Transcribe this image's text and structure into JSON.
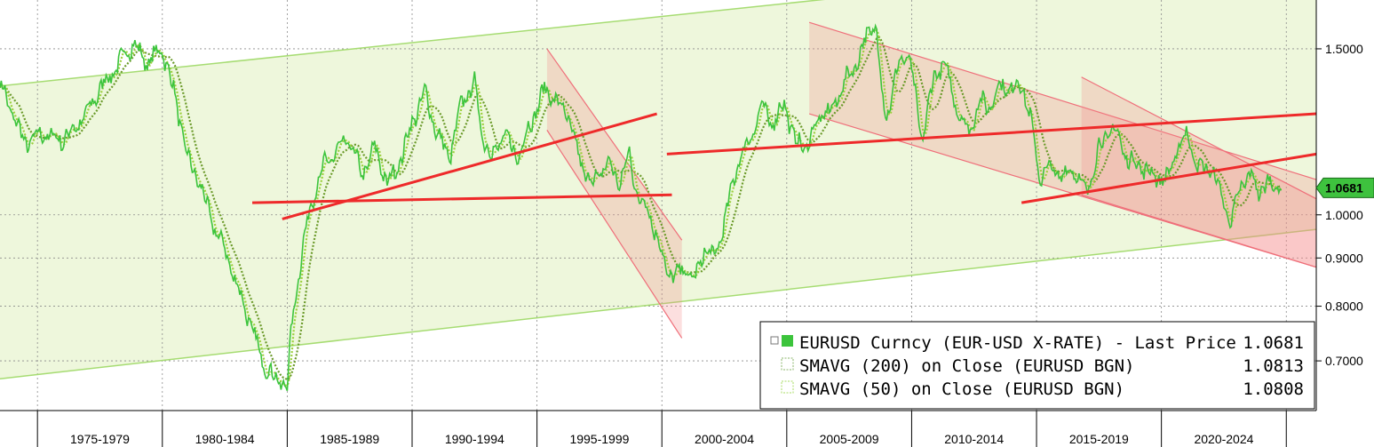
{
  "chart_data": {
    "type": "line",
    "x_axis": {
      "categories": [
        "1975-1979",
        "1980-1984",
        "1985-1989",
        "1990-1994",
        "1995-1999",
        "2000-2004",
        "2005-2009",
        "2010-2014",
        "2015-2019",
        "2020-2024"
      ],
      "range": [
        1973.5,
        2026.2
      ]
    },
    "y_axis": {
      "scale": "log",
      "ticks": [
        {
          "value": 1.5,
          "label": "1.5000"
        },
        {
          "value": 1.0,
          "label": "1.0000"
        },
        {
          "value": 0.9,
          "label": "0.9000"
        },
        {
          "value": 0.8,
          "label": "0.8000"
        },
        {
          "value": 0.7,
          "label": "0.7000"
        }
      ],
      "range": [
        0.62,
        1.69
      ],
      "position": "right"
    },
    "grid": true,
    "series": [
      {
        "name": "EURUSD Curncy (EUR-USD X-RATE) - Last Price",
        "last_value": "1.0681",
        "color": "#3cc43c",
        "x": [
          1973.5,
          1974.5,
          1975.2,
          1976.0,
          1976.8,
          1977.5,
          1978.2,
          1978.8,
          1979.4,
          1980.0,
          1980.5,
          1981.0,
          1981.5,
          1982.0,
          1982.5,
          1983.0,
          1983.5,
          1984.0,
          1984.5,
          1985.0,
          1985.2,
          1985.6,
          1986.0,
          1986.5,
          1987.0,
          1987.5,
          1988.0,
          1988.5,
          1989.0,
          1989.4,
          1990.0,
          1990.5,
          1991.0,
          1991.5,
          1992.0,
          1992.5,
          1992.8,
          1993.2,
          1993.7,
          1994.2,
          1994.8,
          1995.3,
          1995.8,
          1996.3,
          1996.8,
          1997.3,
          1997.8,
          1998.3,
          1998.7,
          1999.0,
          1999.4,
          1999.8,
          2000.2,
          2000.6,
          2000.9,
          2001.3,
          2001.7,
          2002.1,
          2002.5,
          2003.0,
          2003.5,
          2004.0,
          2004.5,
          2004.9,
          2005.3,
          2005.8,
          2006.3,
          2006.8,
          2007.3,
          2007.8,
          2008.3,
          2008.6,
          2008.8,
          2009.0,
          2009.5,
          2009.9,
          2010.4,
          2010.9,
          2011.3,
          2011.8,
          2012.3,
          2012.7,
          2013.1,
          2013.5,
          2014.0,
          2014.4,
          2014.8,
          2015.1,
          2015.5,
          2016.0,
          2016.5,
          2017.0,
          2017.5,
          2018.1,
          2018.6,
          2019.1,
          2019.7,
          2020.2,
          2020.7,
          2021.0,
          2021.5,
          2022.0,
          2022.4,
          2022.8,
          2023.2,
          2023.6,
          2023.9,
          2024.3,
          2024.8
        ],
        "y": [
          1.38,
          1.19,
          1.22,
          1.2,
          1.26,
          1.36,
          1.44,
          1.52,
          1.45,
          1.5,
          1.34,
          1.15,
          1.08,
          0.98,
          0.92,
          0.84,
          0.77,
          0.7,
          0.67,
          0.66,
          0.77,
          0.92,
          1.04,
          1.13,
          1.17,
          1.2,
          1.1,
          1.18,
          1.08,
          1.12,
          1.25,
          1.35,
          1.22,
          1.15,
          1.32,
          1.38,
          1.22,
          1.15,
          1.22,
          1.15,
          1.26,
          1.36,
          1.32,
          1.26,
          1.12,
          1.08,
          1.14,
          1.08,
          1.16,
          1.05,
          1.02,
          0.95,
          0.87,
          0.86,
          0.88,
          0.85,
          0.92,
          0.9,
          0.98,
          1.13,
          1.2,
          1.3,
          1.25,
          1.32,
          1.2,
          1.18,
          1.27,
          1.29,
          1.38,
          1.45,
          1.57,
          1.58,
          1.35,
          1.27,
          1.45,
          1.48,
          1.2,
          1.4,
          1.45,
          1.3,
          1.22,
          1.32,
          1.3,
          1.37,
          1.36,
          1.38,
          1.25,
          1.1,
          1.12,
          1.1,
          1.12,
          1.05,
          1.18,
          1.24,
          1.15,
          1.13,
          1.1,
          1.09,
          1.18,
          1.22,
          1.12,
          1.12,
          1.05,
          0.98,
          1.08,
          1.1,
          1.06,
          1.08,
          1.07
        ]
      },
      {
        "name": "SMAVG (200)  on Close (EURUSD BGN)",
        "last_value": "1.0813",
        "color": "#6b9a2a"
      },
      {
        "name": "SMAVG (50)  on Close (EURUSD BGN)",
        "last_value": "1.0808",
        "color": "#9bcf3c"
      }
    ],
    "legend_position": "bottom-right",
    "last_price_tag": "1.0681",
    "annotations": {
      "long_term_channel": {
        "upper": [
          [
            1973.5,
            1.37
          ],
          [
            2026.2,
            1.92
          ]
        ],
        "lower": [
          [
            1973.5,
            0.67
          ],
          [
            2026.2,
            0.965
          ]
        ]
      },
      "down_channels": [
        {
          "upper": [
            [
              1995.4,
              1.5
            ],
            [
              2000.8,
              0.94
            ]
          ],
          "lower": [
            [
              1995.4,
              1.23
            ],
            [
              2000.8,
              0.74
            ]
          ],
          "end_fill": [
            [
              2000.8,
              0.94
            ],
            [
              2000.8,
              0.74
            ]
          ]
        },
        {
          "upper": [
            [
              2005.9,
              1.6
            ],
            [
              2026.2,
              1.09
            ]
          ],
          "lower": [
            [
              2005.9,
              1.28
            ],
            [
              2026.2,
              0.88
            ]
          ],
          "end_fill": [
            [
              2026.2,
              1.09
            ],
            [
              2026.2,
              0.88
            ]
          ]
        },
        {
          "upper": [
            [
              2016.8,
              1.4
            ],
            [
              2026.2,
              1.04
            ]
          ],
          "lower": [
            [
              2016.8,
              1.05
            ],
            [
              2026.2,
              0.88
            ]
          ],
          "end_fill": [
            [
              2026.2,
              1.04
            ],
            [
              2026.2,
              0.88
            ]
          ]
        }
      ],
      "trend_lines": [
        [
          [
            1983.6,
            1.03
          ],
          [
            2000.4,
            1.05
          ]
        ],
        [
          [
            1984.8,
            0.99
          ],
          [
            1999.8,
            1.28
          ]
        ],
        [
          [
            2000.2,
            1.16
          ],
          [
            2026.2,
            1.28
          ]
        ],
        [
          [
            2014.4,
            1.03
          ],
          [
            2026.2,
            1.16
          ]
        ]
      ]
    }
  }
}
